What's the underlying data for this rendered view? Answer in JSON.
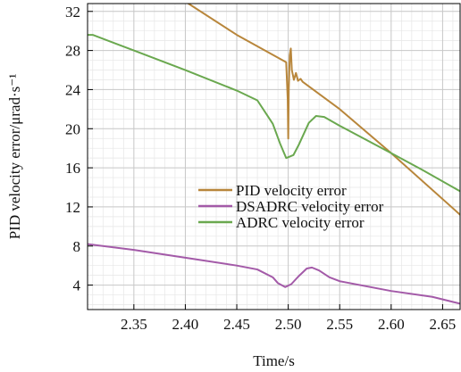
{
  "chart_data": {
    "type": "line",
    "title": "",
    "xlabel": "Time/s",
    "ylabel": "PID velocity error/μrad·s⁻¹",
    "xlim": [
      2.305,
      2.667
    ],
    "ylim": [
      1.5,
      32.8
    ],
    "x_ticks": [
      2.35,
      2.4,
      2.45,
      2.5,
      2.55,
      2.6,
      2.65
    ],
    "x_tick_labels": [
      "2.35",
      "2.40",
      "2.45",
      "2.50",
      "2.55",
      "2.60",
      "2.65"
    ],
    "y_ticks": [
      4,
      8,
      12,
      16,
      20,
      24,
      28,
      32
    ],
    "y_tick_labels": [
      "4",
      "8",
      "12",
      "16",
      "20",
      "24",
      "28",
      "32"
    ],
    "grid": true,
    "legend_position": "center-right",
    "series": [
      {
        "name": "PID velocity error",
        "color": "#b8863b",
        "points": [
          [
            2.403,
            32.8
          ],
          [
            2.45,
            29.6
          ],
          [
            2.498,
            26.8
          ],
          [
            2.4995,
            23.0
          ],
          [
            2.5,
            19.0
          ],
          [
            2.5005,
            24.0
          ],
          [
            2.5015,
            27.5
          ],
          [
            2.5025,
            28.2
          ],
          [
            2.5035,
            26.0
          ],
          [
            2.5055,
            25.0
          ],
          [
            2.5075,
            25.7
          ],
          [
            2.5095,
            24.9
          ],
          [
            2.512,
            25.1
          ],
          [
            2.514,
            24.8
          ],
          [
            2.55,
            22.0
          ],
          [
            2.6,
            17.5
          ],
          [
            2.667,
            11.2
          ]
        ]
      },
      {
        "name": "DSADRC velocity error",
        "color": "#a35aa8",
        "points": [
          [
            2.305,
            8.2
          ],
          [
            2.35,
            7.6
          ],
          [
            2.4,
            6.8
          ],
          [
            2.45,
            6.0
          ],
          [
            2.47,
            5.6
          ],
          [
            2.485,
            4.8
          ],
          [
            2.49,
            4.2
          ],
          [
            2.497,
            3.8
          ],
          [
            2.503,
            4.1
          ],
          [
            2.51,
            4.9
          ],
          [
            2.518,
            5.7
          ],
          [
            2.523,
            5.8
          ],
          [
            2.53,
            5.5
          ],
          [
            2.54,
            4.8
          ],
          [
            2.55,
            4.4
          ],
          [
            2.6,
            3.4
          ],
          [
            2.64,
            2.8
          ],
          [
            2.667,
            2.1
          ]
        ]
      },
      {
        "name": "ADRC velocity error",
        "color": "#6aa84f",
        "points": [
          [
            2.305,
            29.6
          ],
          [
            2.31,
            29.6
          ],
          [
            2.35,
            28.0
          ],
          [
            2.4,
            26.0
          ],
          [
            2.45,
            23.9
          ],
          [
            2.47,
            22.9
          ],
          [
            2.485,
            20.5
          ],
          [
            2.492,
            18.5
          ],
          [
            2.498,
            17.0
          ],
          [
            2.505,
            17.3
          ],
          [
            2.51,
            18.3
          ],
          [
            2.52,
            20.6
          ],
          [
            2.527,
            21.3
          ],
          [
            2.535,
            21.2
          ],
          [
            2.55,
            20.3
          ],
          [
            2.6,
            17.5
          ],
          [
            2.63,
            15.8
          ],
          [
            2.667,
            13.6
          ]
        ]
      }
    ]
  }
}
